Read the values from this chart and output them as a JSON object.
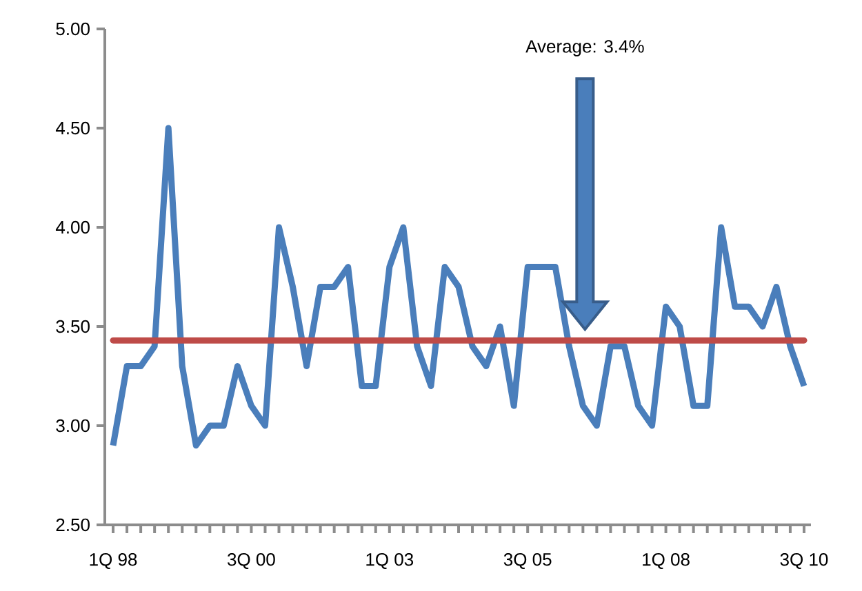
{
  "chart_data": {
    "type": "line",
    "categories": [
      "1Q 98",
      null,
      null,
      null,
      null,
      null,
      null,
      null,
      null,
      null,
      "3Q 00",
      null,
      null,
      null,
      null,
      null,
      null,
      null,
      null,
      null,
      "1Q 03",
      null,
      null,
      null,
      null,
      null,
      null,
      null,
      null,
      null,
      "3Q 05",
      null,
      null,
      null,
      null,
      null,
      null,
      null,
      null,
      null,
      "1Q 08",
      null,
      null,
      null,
      null,
      null,
      null,
      null,
      null,
      null,
      "3Q 10"
    ],
    "series": [
      {
        "color": "#4a7ebb",
        "values": [
          2.9,
          3.3,
          3.3,
          3.4,
          4.5,
          3.3,
          2.9,
          3.0,
          3.0,
          3.3,
          3.1,
          3.0,
          4.0,
          3.7,
          3.3,
          3.7,
          3.7,
          3.8,
          3.2,
          3.2,
          3.8,
          4.0,
          3.4,
          3.2,
          3.8,
          3.7,
          3.4,
          3.3,
          3.5,
          3.1,
          3.8,
          3.8,
          3.8,
          3.4,
          3.1,
          3.0,
          3.4,
          3.4,
          3.1,
          3.0,
          3.6,
          3.5,
          3.1,
          3.1,
          4.0,
          3.6,
          3.6,
          3.5,
          3.7,
          3.4,
          3.2
        ]
      }
    ],
    "ylim": [
      2.5,
      5.0
    ],
    "yticks": [
      {
        "value": 2.5,
        "label": "2.50"
      },
      {
        "value": 3.0,
        "label": "3.00"
      },
      {
        "value": 3.5,
        "label": "3.50"
      },
      {
        "value": 4.0,
        "label": "4.00"
      },
      {
        "value": 4.5,
        "label": "4.50"
      },
      {
        "value": 5.0,
        "label": "5.00"
      }
    ],
    "ref_lines": [
      {
        "axis": "y",
        "value": 3.43,
        "color": "#be4b48"
      }
    ],
    "annotations": [
      "Average: 3.4%"
    ],
    "grid": false,
    "marker": "none",
    "line_style": "solid"
  }
}
